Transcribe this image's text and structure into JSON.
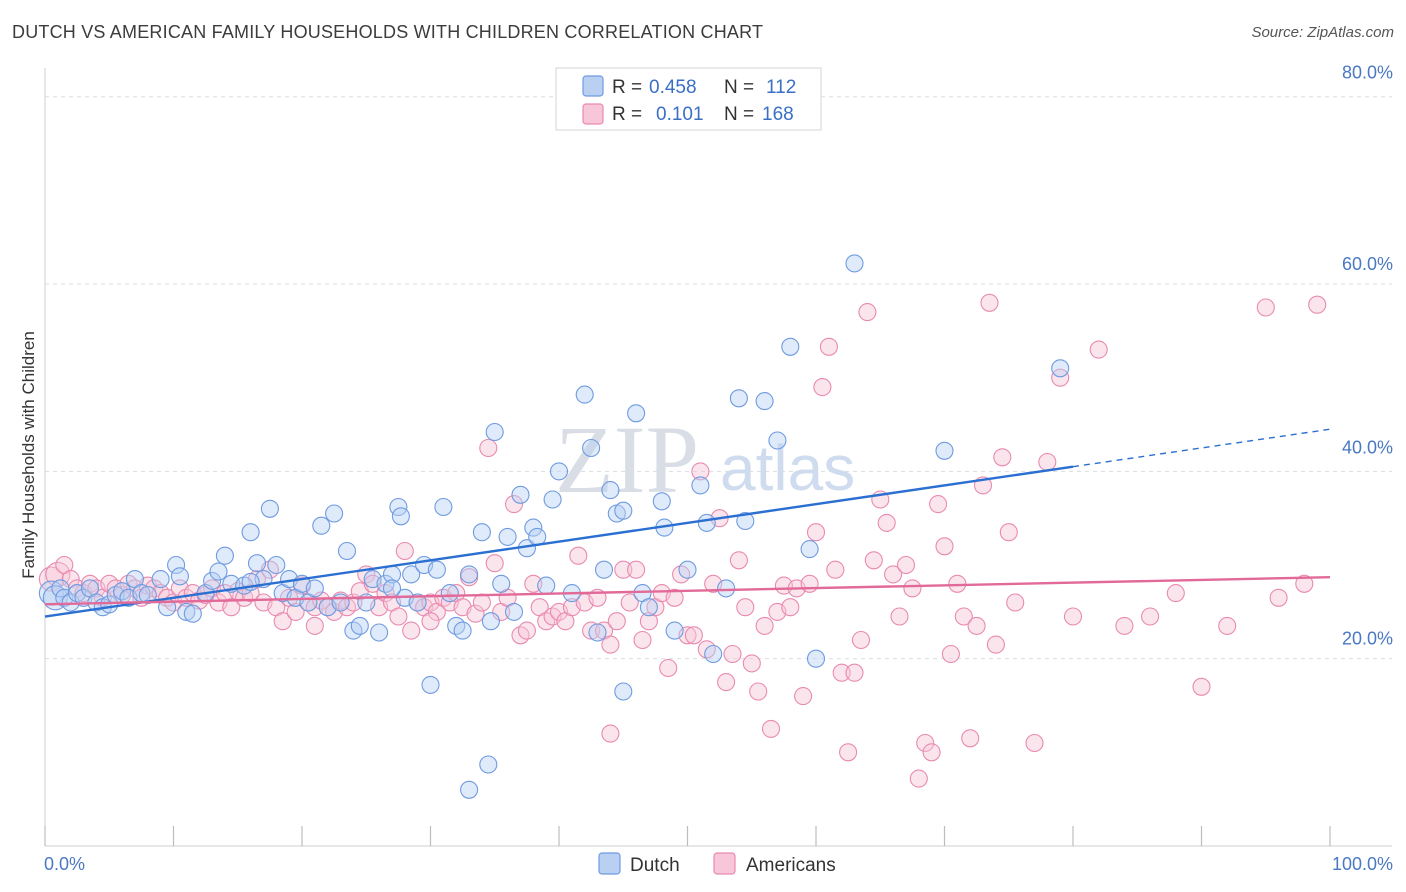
{
  "title": "DUTCH VS AMERICAN FAMILY HOUSEHOLDS WITH CHILDREN CORRELATION CHART",
  "source": "Source: ZipAtlas.com",
  "watermark": {
    "zip": "ZIP",
    "atlas": "atlas"
  },
  "colors": {
    "dutch": "#6f9be0",
    "dutch_fill": "#b9d0f3",
    "dutch_line": "#2a6fd1",
    "american": "#e98ab0",
    "american_fill": "#f7c6d8",
    "american_line": "#e26a98",
    "grid": "#d9dde3",
    "axis_text": "#4a78c2"
  },
  "legend": {
    "rows": [
      {
        "r_label": "R =",
        "r_value": "0.458",
        "n_label": "N =",
        "n_value": "112"
      },
      {
        "r_label": "R =",
        "r_value": "0.101",
        "n_label": "N =",
        "n_value": "168"
      }
    ]
  },
  "bottom_legend": {
    "dutch": "Dutch",
    "americans": "Americans"
  },
  "chart_data": {
    "type": "scatter",
    "title": "DUTCH VS AMERICAN FAMILY HOUSEHOLDS WITH CHILDREN CORRELATION CHART",
    "xlabel": "",
    "ylabel": "Family Households with Children",
    "xlim": [
      0,
      100
    ],
    "ylim": [
      0,
      82
    ],
    "x_tick_labels": [
      "0.0%",
      "100.0%"
    ],
    "y_ticks": [
      20,
      40,
      60,
      80
    ],
    "y_tick_labels": [
      "20.0%",
      "40.0%",
      "60.0%",
      "80.0%"
    ],
    "grid": true,
    "series": [
      {
        "name": "Dutch",
        "r": 0.458,
        "n": 112,
        "trend": {
          "x0": 0,
          "y0": 24.5,
          "x1": 80,
          "y1": 40.5,
          "dash_to_x": 100,
          "dash_to_y": 44.5
        },
        "points": [
          [
            0.5,
            27.0
          ],
          [
            0.8,
            26.5
          ],
          [
            1.2,
            27.5
          ],
          [
            1.5,
            26.5
          ],
          [
            2.0,
            26.0
          ],
          [
            2.5,
            27.0
          ],
          [
            3.0,
            26.5
          ],
          [
            3.5,
            27.5
          ],
          [
            4.0,
            26.0
          ],
          [
            4.5,
            25.5
          ],
          [
            5.0,
            25.8
          ],
          [
            5.5,
            26.8
          ],
          [
            6.0,
            27.2
          ],
          [
            6.5,
            26.5
          ],
          [
            7.0,
            28.5
          ],
          [
            7.5,
            27.0
          ],
          [
            8.0,
            26.8
          ],
          [
            9.0,
            28.5
          ],
          [
            9.5,
            25.5
          ],
          [
            10.2,
            30.0
          ],
          [
            10.5,
            28.8
          ],
          [
            11.0,
            25.0
          ],
          [
            11.5,
            24.8
          ],
          [
            12.5,
            27.0
          ],
          [
            13.0,
            28.3
          ],
          [
            13.5,
            29.3
          ],
          [
            14.0,
            31.0
          ],
          [
            14.5,
            28.0
          ],
          [
            15.5,
            27.8
          ],
          [
            16.0,
            33.5
          ],
          [
            16.5,
            30.2
          ],
          [
            17.0,
            28.5
          ],
          [
            17.5,
            36.0
          ],
          [
            18.0,
            30.0
          ],
          [
            18.5,
            27.0
          ],
          [
            19.0,
            28.5
          ],
          [
            19.5,
            26.5
          ],
          [
            20.0,
            28.0
          ],
          [
            20.5,
            26.0
          ],
          [
            21.0,
            27.5
          ],
          [
            21.5,
            34.2
          ],
          [
            22.0,
            25.5
          ],
          [
            22.5,
            35.5
          ],
          [
            23.0,
            26.0
          ],
          [
            23.5,
            31.5
          ],
          [
            24.0,
            23.0
          ],
          [
            24.5,
            23.5
          ],
          [
            25.0,
            26.0
          ],
          [
            25.5,
            28.5
          ],
          [
            26.0,
            22.8
          ],
          [
            26.5,
            28.0
          ],
          [
            27.0,
            29.0
          ],
          [
            27.5,
            36.2
          ],
          [
            27.7,
            35.2
          ],
          [
            28.0,
            26.5
          ],
          [
            28.5,
            29.0
          ],
          [
            29.0,
            26.0
          ],
          [
            29.5,
            30.0
          ],
          [
            30.0,
            17.2
          ],
          [
            30.5,
            29.5
          ],
          [
            31.0,
            36.2
          ],
          [
            31.5,
            27.0
          ],
          [
            32.0,
            23.5
          ],
          [
            32.5,
            23.0
          ],
          [
            33.0,
            29.0
          ],
          [
            34.0,
            33.5
          ],
          [
            34.5,
            8.7
          ],
          [
            34.7,
            24.0
          ],
          [
            35.0,
            44.2
          ],
          [
            35.5,
            28.0
          ],
          [
            36.0,
            33.0
          ],
          [
            36.5,
            25.0
          ],
          [
            37.0,
            37.5
          ],
          [
            37.5,
            31.8
          ],
          [
            38.0,
            34.0
          ],
          [
            38.3,
            33.0
          ],
          [
            39.0,
            27.8
          ],
          [
            39.5,
            37.0
          ],
          [
            40.0,
            40.0
          ],
          [
            41.0,
            27.0
          ],
          [
            42.0,
            48.2
          ],
          [
            42.5,
            42.5
          ],
          [
            43.0,
            22.8
          ],
          [
            43.5,
            29.5
          ],
          [
            44.0,
            38.0
          ],
          [
            44.5,
            35.5
          ],
          [
            45.0,
            35.8
          ],
          [
            46.0,
            46.2
          ],
          [
            46.5,
            27.0
          ],
          [
            47.0,
            25.5
          ],
          [
            48.0,
            36.8
          ],
          [
            48.2,
            34.0
          ],
          [
            49.0,
            23.0
          ],
          [
            50.0,
            29.5
          ],
          [
            51.0,
            38.5
          ],
          [
            51.5,
            34.5
          ],
          [
            52.0,
            20.5
          ],
          [
            53.0,
            27.5
          ],
          [
            54.0,
            47.8
          ],
          [
            54.5,
            34.7
          ],
          [
            56.0,
            47.5
          ],
          [
            57.0,
            43.3
          ],
          [
            58.0,
            53.3
          ],
          [
            59.5,
            31.7
          ],
          [
            63.0,
            62.2
          ],
          [
            70.0,
            42.2
          ],
          [
            79.0,
            51.0
          ],
          [
            60.0,
            20.0
          ],
          [
            33.0,
            6.0
          ],
          [
            45.0,
            16.5
          ],
          [
            27.0,
            27.5
          ],
          [
            16.0,
            28.2
          ]
        ]
      },
      {
        "name": "Americans",
        "r": 0.101,
        "n": 168,
        "trend": {
          "x0": 0,
          "y0": 25.8,
          "x1": 100,
          "y1": 28.7
        },
        "points": [
          [
            0.5,
            28.5
          ],
          [
            1.0,
            29.0
          ],
          [
            1.5,
            30.0
          ],
          [
            2.0,
            28.5
          ],
          [
            2.5,
            27.5
          ],
          [
            3.0,
            27.0
          ],
          [
            3.5,
            28.0
          ],
          [
            4.0,
            27.5
          ],
          [
            4.5,
            26.5
          ],
          [
            5.0,
            28.0
          ],
          [
            5.5,
            27.5
          ],
          [
            6.0,
            26.8
          ],
          [
            6.5,
            28.0
          ],
          [
            7.0,
            27.5
          ],
          [
            7.5,
            26.5
          ],
          [
            8.0,
            27.8
          ],
          [
            8.5,
            27.5
          ],
          [
            9.0,
            27.0
          ],
          [
            9.5,
            26.5
          ],
          [
            10.0,
            26.0
          ],
          [
            10.5,
            27.5
          ],
          [
            11.0,
            26.5
          ],
          [
            11.5,
            27.0
          ],
          [
            12.0,
            26.2
          ],
          [
            12.5,
            26.8
          ],
          [
            13.0,
            27.5
          ],
          [
            13.5,
            26.0
          ],
          [
            14.0,
            27.0
          ],
          [
            14.5,
            25.5
          ],
          [
            15.0,
            27.2
          ],
          [
            15.5,
            26.5
          ],
          [
            16.0,
            27.0
          ],
          [
            16.5,
            28.5
          ],
          [
            17.0,
            26.0
          ],
          [
            17.5,
            29.5
          ],
          [
            18.0,
            25.5
          ],
          [
            18.5,
            24.0
          ],
          [
            19.0,
            26.5
          ],
          [
            19.5,
            25.0
          ],
          [
            20.0,
            27.8
          ],
          [
            20.5,
            26.0
          ],
          [
            21.0,
            25.5
          ],
          [
            21.5,
            26.2
          ],
          [
            22.0,
            25.5
          ],
          [
            22.5,
            25.0
          ],
          [
            23.0,
            26.2
          ],
          [
            23.5,
            25.5
          ],
          [
            24.0,
            26.0
          ],
          [
            24.5,
            27.2
          ],
          [
            25.0,
            29.0
          ],
          [
            25.5,
            28.0
          ],
          [
            26.0,
            25.5
          ],
          [
            26.5,
            27.0
          ],
          [
            27.0,
            26.0
          ],
          [
            27.5,
            24.5
          ],
          [
            28.0,
            31.5
          ],
          [
            28.5,
            23.0
          ],
          [
            29.0,
            26.0
          ],
          [
            29.5,
            25.5
          ],
          [
            30.0,
            26.0
          ],
          [
            30.5,
            25.0
          ],
          [
            31.0,
            26.5
          ],
          [
            31.5,
            26.0
          ],
          [
            32.0,
            27.0
          ],
          [
            32.5,
            25.5
          ],
          [
            33.0,
            28.7
          ],
          [
            33.5,
            24.8
          ],
          [
            34.0,
            26.0
          ],
          [
            34.5,
            42.5
          ],
          [
            35.0,
            30.2
          ],
          [
            35.5,
            25.0
          ],
          [
            36.0,
            26.5
          ],
          [
            36.5,
            36.5
          ],
          [
            37.0,
            22.5
          ],
          [
            37.5,
            23.0
          ],
          [
            38.0,
            28.0
          ],
          [
            38.5,
            25.5
          ],
          [
            39.0,
            24.0
          ],
          [
            39.5,
            24.5
          ],
          [
            40.0,
            25.0
          ],
          [
            40.5,
            24.0
          ],
          [
            41.0,
            25.5
          ],
          [
            41.5,
            31.0
          ],
          [
            42.0,
            26.0
          ],
          [
            42.5,
            23.0
          ],
          [
            43.0,
            26.5
          ],
          [
            43.5,
            23.0
          ],
          [
            44.0,
            21.5
          ],
          [
            44.5,
            24.0
          ],
          [
            45.0,
            29.5
          ],
          [
            45.5,
            26.0
          ],
          [
            46.0,
            29.5
          ],
          [
            46.5,
            22.0
          ],
          [
            47.0,
            24.0
          ],
          [
            47.5,
            25.5
          ],
          [
            48.0,
            27.0
          ],
          [
            48.5,
            19.0
          ],
          [
            49.0,
            26.5
          ],
          [
            49.5,
            29.0
          ],
          [
            50.0,
            22.5
          ],
          [
            50.5,
            22.5
          ],
          [
            51.0,
            40.0
          ],
          [
            51.5,
            21.0
          ],
          [
            52.0,
            28.0
          ],
          [
            52.5,
            35.0
          ],
          [
            53.0,
            17.5
          ],
          [
            53.5,
            20.5
          ],
          [
            54.0,
            30.5
          ],
          [
            54.5,
            25.5
          ],
          [
            55.0,
            19.5
          ],
          [
            55.5,
            16.5
          ],
          [
            56.0,
            23.5
          ],
          [
            56.5,
            12.5
          ],
          [
            57.0,
            25.0
          ],
          [
            57.5,
            27.8
          ],
          [
            58.0,
            25.5
          ],
          [
            58.5,
            27.5
          ],
          [
            59.0,
            16.0
          ],
          [
            59.5,
            28.0
          ],
          [
            60.0,
            33.5
          ],
          [
            60.5,
            49.0
          ],
          [
            61.0,
            53.3
          ],
          [
            61.5,
            29.5
          ],
          [
            62.0,
            18.5
          ],
          [
            62.5,
            10.0
          ],
          [
            63.0,
            18.5
          ],
          [
            63.5,
            22.0
          ],
          [
            64.0,
            57.0
          ],
          [
            64.5,
            30.5
          ],
          [
            65.0,
            37.0
          ],
          [
            65.5,
            34.5
          ],
          [
            66.0,
            29.0
          ],
          [
            66.5,
            24.5
          ],
          [
            67.0,
            30.0
          ],
          [
            67.5,
            27.5
          ],
          [
            68.0,
            7.2
          ],
          [
            68.5,
            11.0
          ],
          [
            69.0,
            10.0
          ],
          [
            69.5,
            36.5
          ],
          [
            70.0,
            32.0
          ],
          [
            70.5,
            20.5
          ],
          [
            71.0,
            28.0
          ],
          [
            71.5,
            24.5
          ],
          [
            72.0,
            11.5
          ],
          [
            72.5,
            23.5
          ],
          [
            73.0,
            38.5
          ],
          [
            73.5,
            58.0
          ],
          [
            74.0,
            21.5
          ],
          [
            74.5,
            41.5
          ],
          [
            75.0,
            33.5
          ],
          [
            75.5,
            26.0
          ],
          [
            77.0,
            11.0
          ],
          [
            78.0,
            41.0
          ],
          [
            79.0,
            50.0
          ],
          [
            80.0,
            24.5
          ],
          [
            82.0,
            53.0
          ],
          [
            84.0,
            23.5
          ],
          [
            86.0,
            24.5
          ],
          [
            88.0,
            27.0
          ],
          [
            90.0,
            17.0
          ],
          [
            92.0,
            23.5
          ],
          [
            95.0,
            57.5
          ],
          [
            96.0,
            26.5
          ],
          [
            98.0,
            28.0
          ],
          [
            99.0,
            57.8
          ],
          [
            44.0,
            12.0
          ],
          [
            30.0,
            24.0
          ],
          [
            21.0,
            23.5
          ]
        ]
      }
    ]
  }
}
